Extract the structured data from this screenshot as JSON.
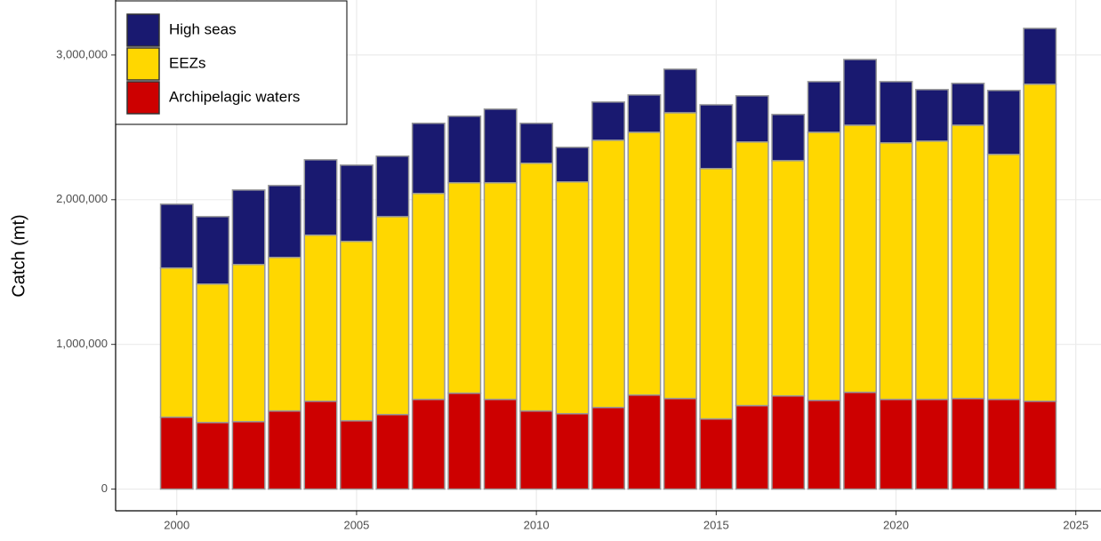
{
  "chart_data": {
    "type": "stacked-bar",
    "y_label": "Catch (mt)",
    "x": [
      2000,
      2001,
      2002,
      2003,
      2004,
      2005,
      2006,
      2007,
      2008,
      2009,
      2010,
      2011,
      2012,
      2013,
      2014,
      2015,
      2016,
      2017,
      2018,
      2019,
      2020,
      2021,
      2022,
      2023,
      2024
    ],
    "series": [
      {
        "name": "Archipelagic waters",
        "color": "#cd0000",
        "values": [
          497000,
          460000,
          466000,
          540000,
          607000,
          472000,
          515000,
          620000,
          663000,
          620000,
          540000,
          521000,
          564000,
          650000,
          626000,
          485000,
          577000,
          644000,
          613000,
          669000,
          620000,
          620000,
          626000,
          620000,
          607000
        ]
      },
      {
        "name": "EEZs",
        "color": "#ffd700",
        "values": [
          1031000,
          957000,
          1086000,
          1061000,
          1148000,
          1240000,
          1368000,
          1423000,
          1454000,
          1497000,
          1712000,
          1602000,
          1847000,
          1816000,
          1975000,
          1730000,
          1822000,
          1626000,
          1853000,
          1846000,
          1773000,
          1785000,
          1889000,
          1693000,
          2191000
        ]
      },
      {
        "name": "High seas",
        "color": "#191970",
        "values": [
          441000,
          466000,
          515000,
          497000,
          521000,
          527000,
          418000,
          485000,
          460000,
          509000,
          276000,
          239000,
          264000,
          258000,
          301000,
          441000,
          319000,
          319000,
          350000,
          454000,
          423000,
          356000,
          289000,
          442000,
          386000
        ]
      }
    ],
    "bar_width": 0.9,
    "bar_outline": "#999999",
    "xlim": [
      1998.3,
      2025.7
    ],
    "xticks": [
      2000,
      2005,
      2010,
      2015,
      2020,
      2025
    ],
    "ylim": [
      -150000,
      3380000
    ],
    "yticks": [
      0,
      {
        "value": 1000000,
        "label": "1,000,000"
      },
      {
        "value": 2000000,
        "label": "2,000,000"
      },
      {
        "value": 3000000,
        "label": "3,000,000"
      }
    ],
    "grid": true,
    "legend": "top-left"
  }
}
